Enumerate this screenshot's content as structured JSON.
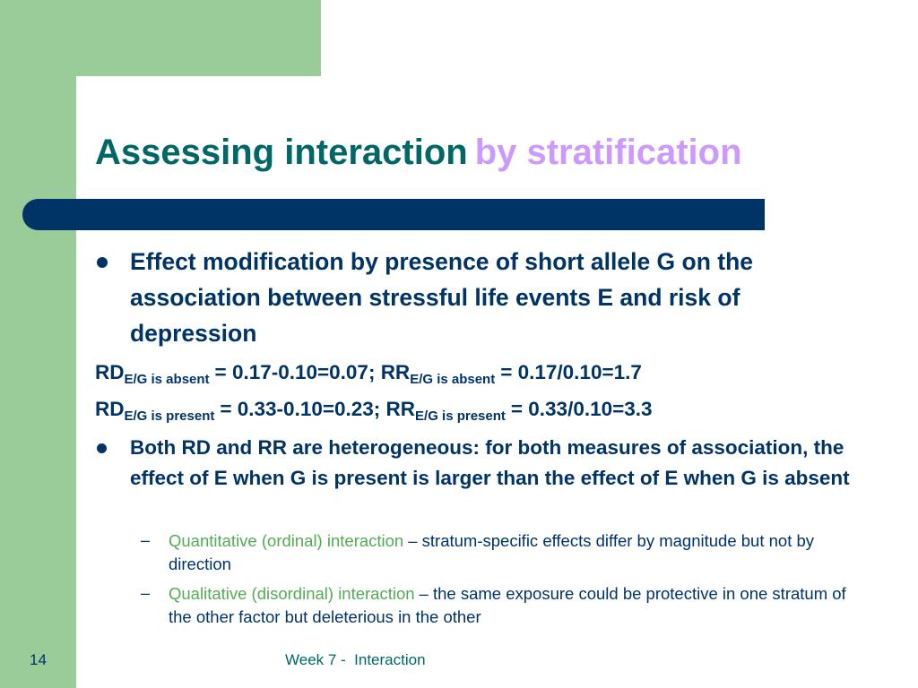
{
  "title": {
    "main": "Assessing interaction",
    "accent": "by stratification"
  },
  "bullets": [
    {
      "text": "Effect modification by presence of short allele G on the association between stressful life events E and risk of depression"
    },
    {
      "text": "Both RD and RR are heterogeneous: for both measures of association, the effect of E when G is present is larger than the effect of E when G is absent"
    }
  ],
  "formulas": [
    [
      "RD",
      "E/G is absent",
      "= 0.17-0.10=0.07; RR",
      "E/G is absent",
      "= 0.17/0.10=1.7"
    ],
    [
      "RD",
      "E/G is present",
      "= 0.33-0.10=0.23; RR",
      "E/G is present",
      "= 0.33/0.10=3.3"
    ]
  ],
  "sub_bullets": [
    {
      "term": "Quantitative (ordinal) interaction",
      "text": "– stratum-specific effects differ by magnitude but not by direction"
    },
    {
      "term": "Qualitative (disordinal) interaction",
      "text": "– the same exposure could be protective in one stratum of the other factor but deleterious in the other"
    }
  ],
  "footer": {
    "page": "14",
    "label": "Week 7 -  Interaction"
  }
}
